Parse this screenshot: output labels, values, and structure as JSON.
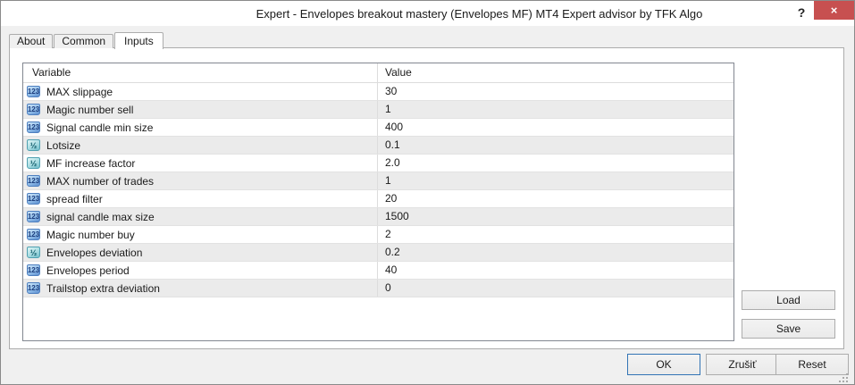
{
  "window": {
    "title": "Expert - Envelopes breakout mastery (Envelopes MF) MT4 Expert advisor by TFK Algo",
    "help_label": "?",
    "close_label": "×",
    "colors": {
      "titlebar_bg": "#FFFFFF",
      "body_bg": "#F0F0F0",
      "close_button_bg": "#C75050",
      "row_alt_bg": "#EBEBEB",
      "table_border": "#828790",
      "default_button_border": "#3274B5",
      "icon_int_blue": "#5E8FD0",
      "icon_double_teal": "#72BECB"
    }
  },
  "tabs": [
    {
      "label": "About",
      "active": false
    },
    {
      "label": "Common",
      "active": false
    },
    {
      "label": "Inputs",
      "active": true
    }
  ],
  "inputs_table": {
    "columns": [
      "Variable",
      "Value"
    ],
    "icon_labels": {
      "numeric-123": "123",
      "fraction-half": "½"
    },
    "rows": [
      {
        "icon": "numeric-123",
        "variable": "MAX slippage",
        "value": "30"
      },
      {
        "icon": "numeric-123",
        "variable": "Magic number sell",
        "value": "1"
      },
      {
        "icon": "numeric-123",
        "variable": "Signal candle min size",
        "value": "400"
      },
      {
        "icon": "fraction-half",
        "variable": "Lotsize",
        "value": "0.1"
      },
      {
        "icon": "fraction-half",
        "variable": "MF increase factor",
        "value": "2.0"
      },
      {
        "icon": "numeric-123",
        "variable": "MAX number of trades",
        "value": "1"
      },
      {
        "icon": "numeric-123",
        "variable": "spread filter",
        "value": "20"
      },
      {
        "icon": "numeric-123",
        "variable": "signal candle max size",
        "value": "1500"
      },
      {
        "icon": "numeric-123",
        "variable": "Magic number buy",
        "value": "2"
      },
      {
        "icon": "fraction-half",
        "variable": "Envelopes deviation",
        "value": "0.2"
      },
      {
        "icon": "numeric-123",
        "variable": "Envelopes period",
        "value": "40"
      },
      {
        "icon": "numeric-123",
        "variable": "Trailstop extra deviation",
        "value": "0"
      }
    ]
  },
  "side_buttons": {
    "load": "Load",
    "save": "Save"
  },
  "bottom_buttons": {
    "ok": "OK",
    "cancel": "Zrušiť",
    "reset": "Reset"
  }
}
